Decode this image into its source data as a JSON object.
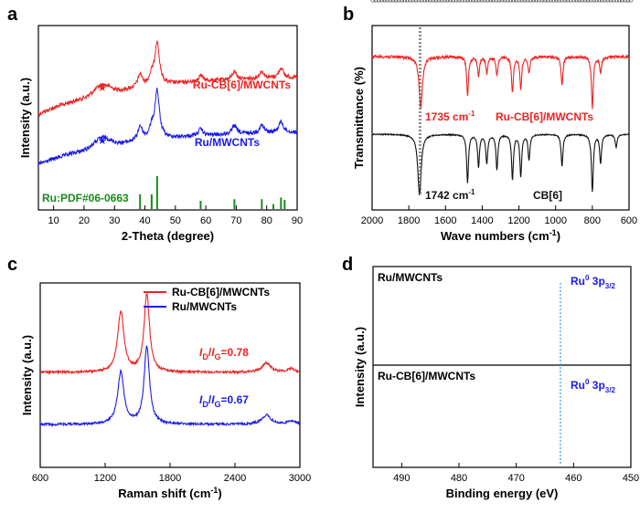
{
  "colors": {
    "red": "#ee2222",
    "blue": "#1a1aee",
    "black": "#111111",
    "green": "#1a8a1a",
    "fit_green": "#22aa22",
    "fit_gray": "#999999",
    "marker_gray": "#555555"
  },
  "chart_data": [
    {
      "panel": "a",
      "type": "line",
      "title": "",
      "xlabel": "2-Theta (degree)",
      "ylabel": "Intensity (a.u.)",
      "xlim": [
        5,
        90
      ],
      "xticks": [
        "10",
        "20",
        "30",
        "40",
        "50",
        "60",
        "70",
        "80",
        "90"
      ],
      "series": [
        {
          "name": "Ru-CB[6]/MWCNTs",
          "color_key": "red",
          "peaks": [
            [
              38.4,
              0.25
            ],
            [
              42.2,
              0.18
            ],
            [
              44.0,
              0.85
            ],
            [
              58.3,
              0.12
            ],
            [
              69.4,
              0.16
            ],
            [
              78.4,
              0.14
            ],
            [
              84.7,
              0.2
            ]
          ],
          "star_at": 26
        },
        {
          "name": "Ru/MWCNTs",
          "color_key": "blue",
          "peaks": [
            [
              38.4,
              0.28
            ],
            [
              42.2,
              0.2
            ],
            [
              44.0,
              0.95
            ],
            [
              58.3,
              0.13
            ],
            [
              69.4,
              0.17
            ],
            [
              78.4,
              0.15
            ],
            [
              84.7,
              0.22
            ]
          ],
          "star_at": 26
        }
      ],
      "reference": {
        "label": "Ru:PDF#06-0663",
        "positions": [
          38.4,
          42.2,
          44.0,
          58.3,
          69.4,
          78.4,
          82.2,
          84.7,
          85.9
        ],
        "heights": [
          0.45,
          0.45,
          1.0,
          0.25,
          0.3,
          0.3,
          0.15,
          0.35,
          0.28
        ]
      }
    },
    {
      "panel": "b",
      "type": "line",
      "xlabel": "Wave numbers (cm",
      "xlabel_sup": "-1",
      "xlabel_end": ")",
      "ylabel": "Transmittance (%)",
      "xlim": [
        2000,
        600
      ],
      "xticks": [
        "2000",
        "1800",
        "1600",
        "1400",
        "1200",
        "1000",
        "800",
        "600"
      ],
      "series": [
        {
          "name": "Ru-CB[6]/MWCNTs",
          "color_key": "red",
          "annotation": "1735 cm",
          "annotation_sup": "-1",
          "dips": [
            [
              1735,
              0.8
            ],
            [
              1480,
              0.6
            ],
            [
              1420,
              0.3
            ],
            [
              1375,
              0.25
            ],
            [
              1320,
              0.3
            ],
            [
              1235,
              0.55
            ],
            [
              1190,
              0.5
            ],
            [
              1145,
              0.25
            ],
            [
              965,
              0.45
            ],
            [
              800,
              0.8
            ],
            [
              755,
              0.25
            ]
          ]
        },
        {
          "name": "CB[6]",
          "color_key": "black",
          "annotation": "1742 cm",
          "annotation_sup": "-1",
          "dips": [
            [
              1742,
              0.95
            ],
            [
              1480,
              0.75
            ],
            [
              1420,
              0.5
            ],
            [
              1375,
              0.45
            ],
            [
              1320,
              0.55
            ],
            [
              1235,
              0.7
            ],
            [
              1190,
              0.65
            ],
            [
              1145,
              0.4
            ],
            [
              965,
              0.5
            ],
            [
              800,
              0.9
            ],
            [
              755,
              0.45
            ],
            [
              670,
              0.2
            ]
          ]
        }
      ]
    },
    {
      "panel": "c",
      "type": "line",
      "xlabel": "Raman shift (cm",
      "xlabel_sup": "-1",
      "xlabel_end": ")",
      "ylabel": "Intensity (a.u.)",
      "xlim": [
        600,
        3000
      ],
      "xticks": [
        "600",
        "1200",
        "1800",
        "2400",
        "3000"
      ],
      "series": [
        {
          "name": "Ru-CB[6]/MWCNTs",
          "color_key": "red",
          "ratio_label": "=0.78",
          "ID_IG": 0.78
        },
        {
          "name": "Ru/MWCNTs",
          "color_key": "blue",
          "ratio_label": "=0.67",
          "ID_IG": 0.67
        }
      ],
      "ratio_prefix": {
        "I1": "I",
        "D": "D",
        "slash": "/",
        "I2": "I",
        "G": "G"
      }
    },
    {
      "panel": "d",
      "type": "line",
      "xlabel": "Binding energy (eV)",
      "ylabel": "Intensity (a.u.)",
      "xlim": [
        495,
        450
      ],
      "xticks": [
        "490",
        "480",
        "470",
        "460",
        "450"
      ],
      "subpanels": [
        {
          "name": "Ru/MWCNTs",
          "annotation": "Ru",
          "ann_sup": "0",
          "ann_mid": " 3p",
          "ann_sub": "3/2"
        },
        {
          "name": "Ru-CB[6]/MWCNTs",
          "annotation": "Ru",
          "ann_sup": "0",
          "ann_mid": " 3p",
          "ann_sub": "3/2"
        }
      ]
    }
  ]
}
